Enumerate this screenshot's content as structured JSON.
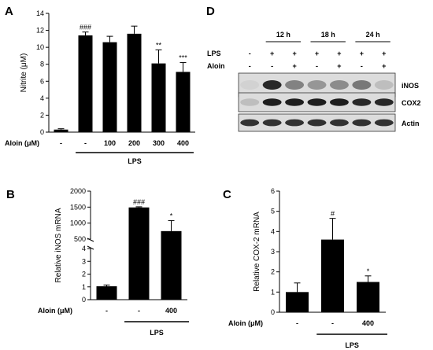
{
  "panels": {
    "A": {
      "letter": "A"
    },
    "B": {
      "letter": "B"
    },
    "C": {
      "letter": "C"
    },
    "D": {
      "letter": "D"
    }
  },
  "chart_data": [
    {
      "panel": "A",
      "type": "bar",
      "ylabel": "Nitrite (μM)",
      "ylim": [
        0,
        14
      ],
      "yticks": [
        "0",
        "2",
        "4",
        "6",
        "8",
        "10",
        "12",
        "14"
      ],
      "categories": [
        "-",
        "-",
        "100",
        "200",
        "300",
        "400"
      ],
      "values": [
        0.3,
        11.4,
        10.6,
        11.6,
        8.1,
        7.1
      ],
      "errors": [
        0.1,
        0.4,
        0.7,
        0.9,
        1.6,
        1.1
      ],
      "significance": [
        "",
        "###",
        "",
        "",
        "**",
        "***"
      ],
      "treatment_label": "Aloin (μM)",
      "group_label": "LPS"
    },
    {
      "panel": "B",
      "type": "bar",
      "ylabel": "Relative iNOS mRNA",
      "axis_break": true,
      "yticks_lower": [
        "0",
        "1",
        "2",
        "3",
        "4"
      ],
      "yticks_upper": [
        "500",
        "1000",
        "1500",
        "2000"
      ],
      "categories": [
        "-",
        "-",
        "400"
      ],
      "values": [
        1.05,
        1490,
        750
      ],
      "errors": [
        0.1,
        20,
        330
      ],
      "significance": [
        "",
        "###",
        "*"
      ],
      "treatment_label": "Aloin (μM)",
      "group_label": "LPS"
    },
    {
      "panel": "C",
      "type": "bar",
      "ylabel": "Relative COX-2 mRNA",
      "ylim": [
        0,
        6
      ],
      "yticks": [
        "0",
        "1",
        "2",
        "3",
        "4",
        "5",
        "6"
      ],
      "categories": [
        "-",
        "-",
        "400"
      ],
      "values": [
        1.0,
        3.6,
        1.5
      ],
      "errors": [
        0.45,
        1.05,
        0.3
      ],
      "significance": [
        "",
        "#",
        "*"
      ],
      "treatment_label": "Aloin (μM)",
      "group_label": "LPS"
    }
  ],
  "blot": {
    "timepoints": [
      "12 h",
      "18 h",
      "24 h"
    ],
    "row_labels": [
      "LPS",
      "Aloin"
    ],
    "lps_marks": [
      "-",
      "+",
      "+",
      "+",
      "+",
      "+",
      "+"
    ],
    "aloin_marks": [
      "-",
      "-",
      "+",
      "-",
      "+",
      "-",
      "+"
    ],
    "bands": [
      {
        "name": "iNOS",
        "intensity": [
          0.05,
          0.9,
          0.45,
          0.35,
          0.4,
          0.5,
          0.15
        ]
      },
      {
        "name": "COX2",
        "intensity": [
          0.15,
          0.95,
          0.95,
          0.95,
          0.95,
          0.9,
          0.9
        ]
      },
      {
        "name": "Actin",
        "intensity": [
          0.85,
          0.85,
          0.85,
          0.85,
          0.85,
          0.85,
          0.85
        ]
      }
    ]
  }
}
